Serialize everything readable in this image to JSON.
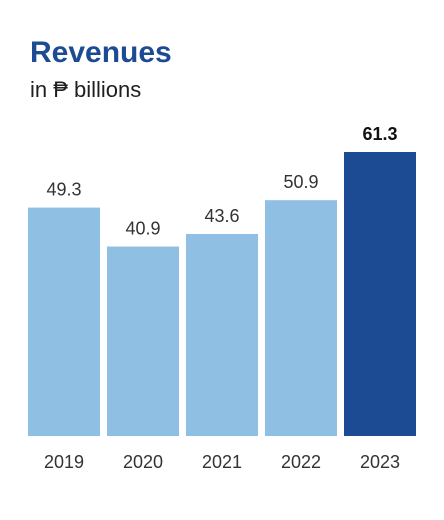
{
  "chart_data": {
    "type": "bar",
    "title": "Revenues",
    "subtitle": "in ₱ billions",
    "categories": [
      "2019",
      "2020",
      "2021",
      "2022",
      "2023"
    ],
    "values": [
      49.3,
      40.9,
      43.6,
      50.9,
      61.3
    ],
    "value_labels": [
      "49.3",
      "40.9",
      "43.6",
      "50.9",
      "61.3"
    ],
    "highlight_index": 4,
    "ylim": [
      0,
      61.3
    ],
    "grid": false,
    "colors": {
      "bar": "#8fbfe3",
      "highlight": "#1c4b94",
      "title": "#1c4b94",
      "label": "#333333",
      "highlight_label": "#111111"
    }
  }
}
